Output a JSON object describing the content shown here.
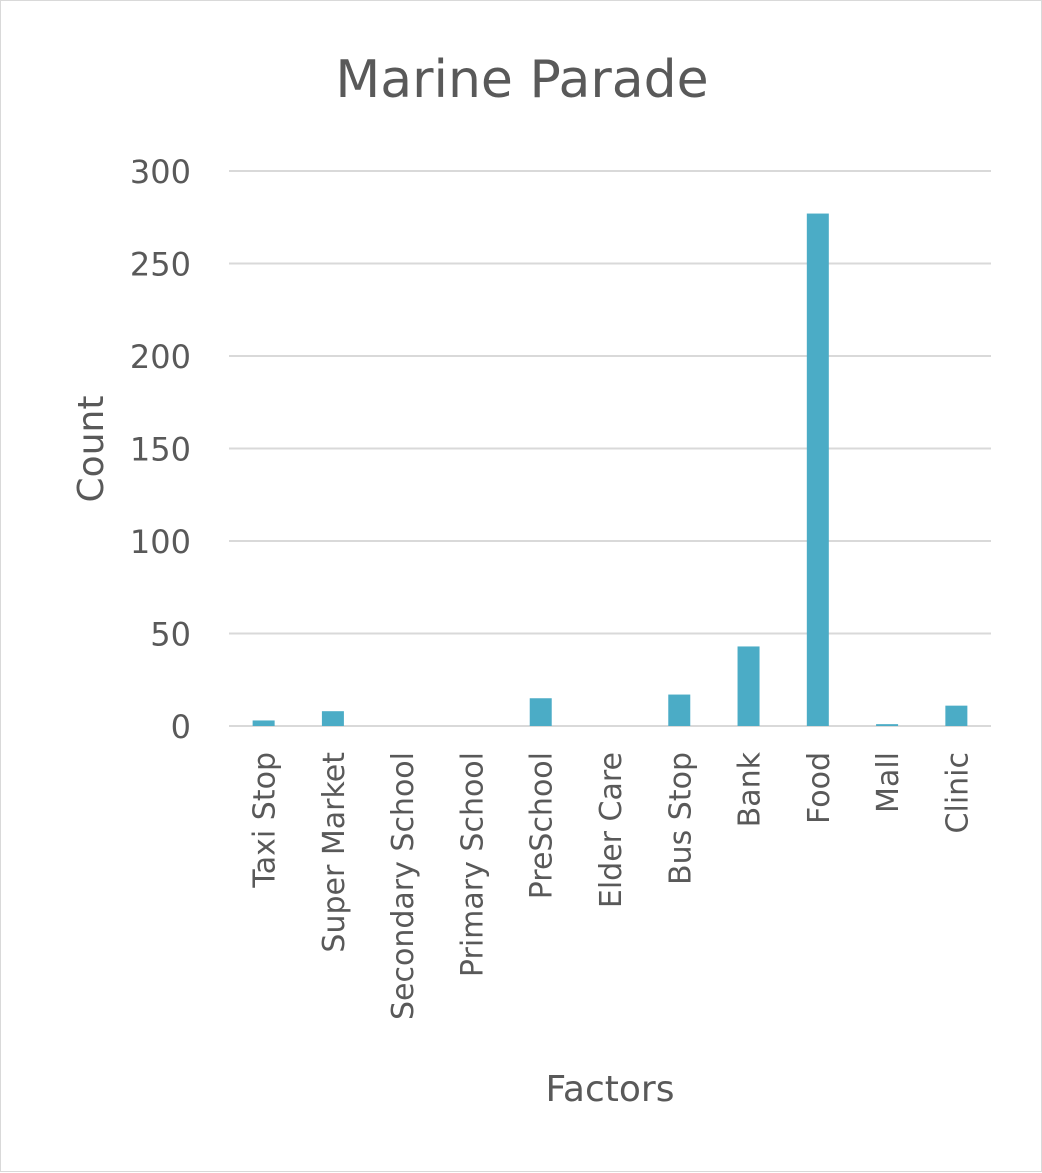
{
  "chart_data": {
    "type": "bar",
    "title": "Marine Parade",
    "xlabel": "Factors",
    "ylabel": "Count",
    "ylim": [
      0,
      300
    ],
    "ytick_step": 50,
    "grid": true,
    "legend": "none",
    "bar_color": "#4bacc6",
    "categories": [
      "Taxi Stop",
      "Super Market",
      "Secondary School",
      "Primary School",
      "PreSchool",
      "Elder Care",
      "Bus Stop",
      "Bank",
      "Food",
      "Mall",
      "Clinic"
    ],
    "values": [
      3,
      8,
      0,
      0,
      15,
      0,
      17,
      43,
      277,
      1,
      11
    ],
    "yticks": [
      "0",
      "50",
      "100",
      "150",
      "200",
      "250",
      "300"
    ]
  }
}
